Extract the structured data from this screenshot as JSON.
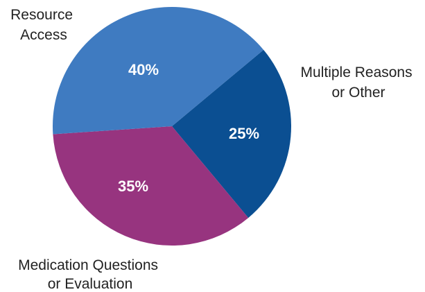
{
  "chart_data": {
    "type": "pie",
    "title": "",
    "slices": [
      {
        "label": "Resource Access",
        "label_lines": [
          "Resource",
          "Access"
        ],
        "value": 40,
        "value_label": "40%",
        "color": "#3f7bc1"
      },
      {
        "label": "Multiple Reasons or Other",
        "label_lines": [
          "Multiple Reasons",
          "or Other"
        ],
        "value": 25,
        "value_label": "25%",
        "color": "#0b4f92"
      },
      {
        "label": "Medication Questions or Evaluation",
        "label_lines": [
          "Medication Questions",
          "or Evaluation"
        ],
        "value": 35,
        "value_label": "35%",
        "color": "#97347f"
      }
    ]
  }
}
